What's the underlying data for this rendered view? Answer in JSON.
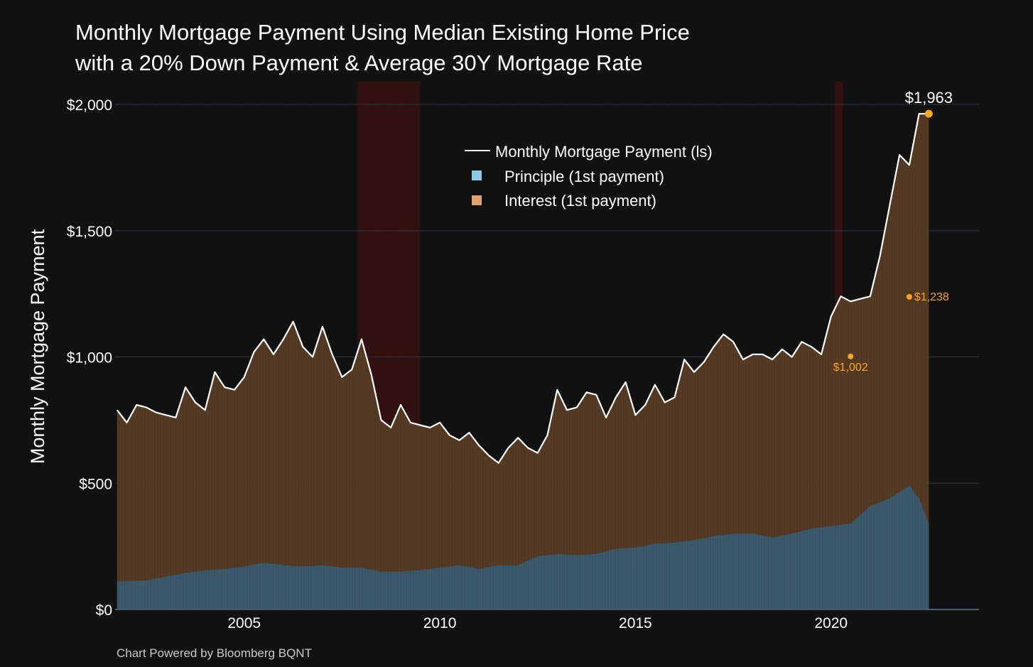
{
  "title": {
    "line1": "Monthly Mortgage Payment Using Median Existing Home Price",
    "line2": "with a 20% Down Payment & Average 30Y Mortgage Rate"
  },
  "footer": "Chart Powered by Bloomberg BQNT",
  "colors": {
    "background": "#121212",
    "payment_line": "#ffffff",
    "principle": "#3a5a6b",
    "principle_legend": "#8ecae6",
    "interest": "#5a3d26",
    "interest_legend": "#e0a070",
    "recession": "#3a1212",
    "highlight": "#f5a623",
    "grid": "#2e3344"
  },
  "chart_data": {
    "type": "line",
    "ylabel": "Monthly Mortgage Payment",
    "xlabel": "",
    "ylim": [
      0,
      2000
    ],
    "yticks": [
      0,
      500,
      1000,
      1500,
      2000
    ],
    "ytick_labels": [
      "$0",
      "$500",
      "$1,000",
      "$1,500",
      "$2,000"
    ],
    "xlim": [
      2001.7,
      2023.8
    ],
    "xticks": [
      2005,
      2010,
      2015,
      2020
    ],
    "xtick_labels": [
      "2005",
      "2010",
      "2015",
      "2020"
    ],
    "grid": true,
    "legend_position": "top-center",
    "recessions": [
      [
        2007.9,
        2009.5
      ],
      [
        2020.1,
        2020.3
      ]
    ],
    "series": [
      {
        "name": "Monthly Mortgage Payment (ls)",
        "type": "line",
        "x": [
          2001.75,
          2002.0,
          2002.25,
          2002.5,
          2002.75,
          2003.0,
          2003.25,
          2003.5,
          2003.75,
          2004.0,
          2004.25,
          2004.5,
          2004.75,
          2005.0,
          2005.25,
          2005.5,
          2005.75,
          2006.0,
          2006.25,
          2006.5,
          2006.75,
          2007.0,
          2007.25,
          2007.5,
          2007.75,
          2008.0,
          2008.25,
          2008.5,
          2008.75,
          2009.0,
          2009.25,
          2009.5,
          2009.75,
          2010.0,
          2010.25,
          2010.5,
          2010.75,
          2011.0,
          2011.25,
          2011.5,
          2011.75,
          2012.0,
          2012.25,
          2012.5,
          2012.75,
          2013.0,
          2013.25,
          2013.5,
          2013.75,
          2014.0,
          2014.25,
          2014.5,
          2014.75,
          2015.0,
          2015.25,
          2015.5,
          2015.75,
          2016.0,
          2016.25,
          2016.5,
          2016.75,
          2017.0,
          2017.25,
          2017.5,
          2017.75,
          2018.0,
          2018.25,
          2018.5,
          2018.75,
          2019.0,
          2019.25,
          2019.5,
          2019.75,
          2020.0,
          2020.25,
          2020.5,
          2020.75,
          2021.0,
          2021.25,
          2021.5,
          2021.75,
          2022.0,
          2022.25,
          2022.4,
          2022.5
        ],
        "values": [
          790,
          740,
          810,
          800,
          780,
          770,
          760,
          880,
          820,
          790,
          940,
          880,
          870,
          920,
          1020,
          1070,
          1010,
          1070,
          1140,
          1040,
          1000,
          1120,
          1010,
          920,
          950,
          1070,
          930,
          750,
          720,
          810,
          740,
          730,
          720,
          740,
          690,
          670,
          700,
          650,
          610,
          580,
          640,
          680,
          640,
          620,
          690,
          870,
          790,
          800,
          860,
          850,
          760,
          840,
          900,
          770,
          810,
          890,
          820,
          840,
          990,
          940,
          980,
          1040,
          1090,
          1060,
          990,
          1010,
          1010,
          990,
          1030,
          1000,
          1060,
          1040,
          1010,
          1160,
          1240,
          1220,
          1230,
          1240,
          1400,
          1600,
          1800,
          1760,
          1963,
          1963,
          1963
        ]
      },
      {
        "name": "Principle (1st payment)",
        "type": "bar",
        "x": [
          2001.75,
          2002.5,
          2003.0,
          2003.5,
          2004.0,
          2004.5,
          2005.0,
          2005.5,
          2006.0,
          2006.5,
          2007.0,
          2007.5,
          2008.0,
          2008.5,
          2009.0,
          2009.5,
          2010.0,
          2010.5,
          2011.0,
          2011.5,
          2012.0,
          2012.5,
          2013.0,
          2013.5,
          2014.0,
          2014.5,
          2015.0,
          2015.5,
          2016.0,
          2016.5,
          2017.0,
          2017.5,
          2018.0,
          2018.5,
          2019.0,
          2019.5,
          2020.0,
          2020.5,
          2021.0,
          2021.5,
          2022.0,
          2022.25,
          2022.5
        ],
        "values": [
          110,
          115,
          130,
          145,
          155,
          160,
          170,
          185,
          175,
          170,
          175,
          165,
          165,
          150,
          150,
          155,
          165,
          175,
          160,
          175,
          175,
          210,
          220,
          215,
          220,
          240,
          245,
          260,
          265,
          275,
          290,
          300,
          300,
          285,
          300,
          320,
          330,
          340,
          410,
          440,
          490,
          440,
          340
        ]
      },
      {
        "name": "Interest (1st payment)",
        "type": "bar",
        "note_stack": "stacked above principle to total payment"
      }
    ],
    "annotations": [
      {
        "label": "$1,963",
        "x": 2022.5,
        "y": 1963
      },
      {
        "label": "$1,238",
        "x": 2022.0,
        "y": 1238
      },
      {
        "label": "$1,002",
        "x": 2020.5,
        "y": 1002
      }
    ]
  },
  "legend": {
    "item_line": "Monthly Mortgage Payment (ls)",
    "item_principle": "Principle (1st payment)",
    "item_interest": "Interest (1st payment)"
  }
}
